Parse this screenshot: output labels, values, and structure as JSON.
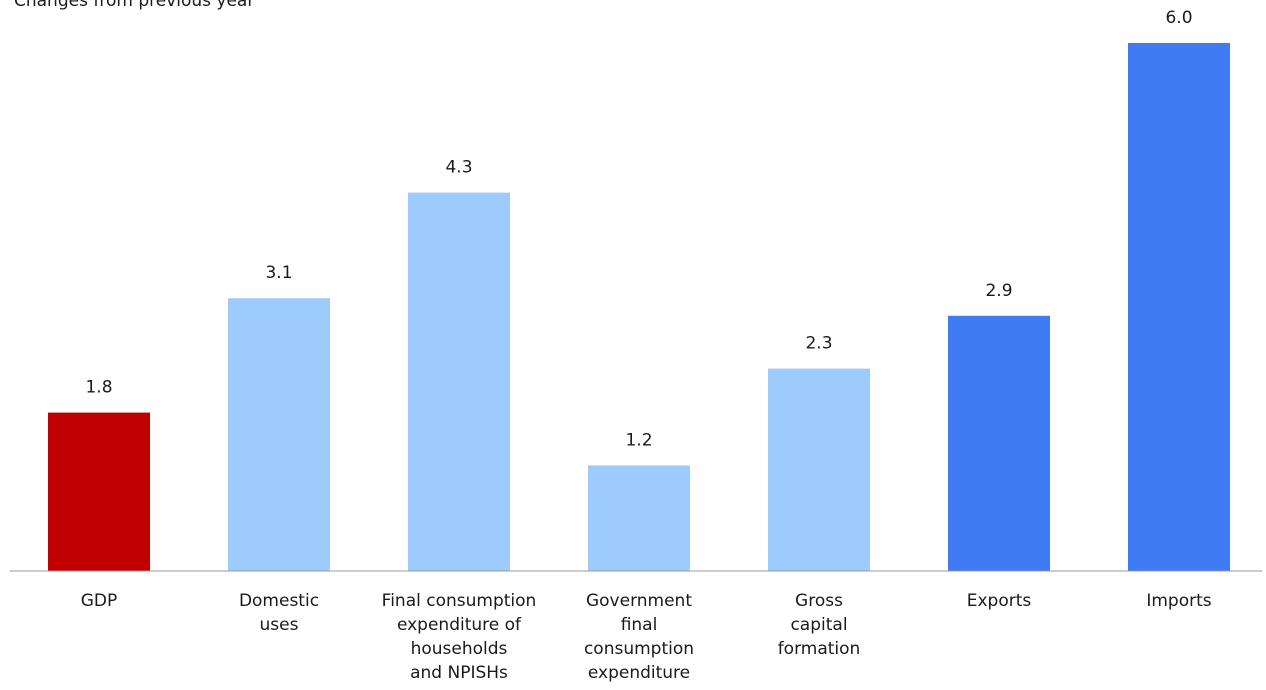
{
  "chart_data": {
    "type": "bar",
    "title": "Changes from previous year",
    "categories": [
      [
        "GDP"
      ],
      [
        "Domestic",
        "uses"
      ],
      [
        "Final consumption",
        "expenditure of",
        "households",
        "and NPISHs"
      ],
      [
        "Government",
        "final",
        "consumption",
        "expenditure"
      ],
      [
        "Gross",
        "capital",
        "formation"
      ],
      [
        "Exports"
      ],
      [
        "Imports"
      ]
    ],
    "values": [
      1.8,
      3.1,
      4.3,
      1.2,
      2.3,
      2.9,
      6.0
    ],
    "value_labels": [
      "1.8",
      "3.1",
      "4.3",
      "1.2",
      "2.3",
      "2.9",
      "6.0"
    ],
    "bar_colors": [
      "#c00000",
      "#9dcbfd",
      "#9dcbfd",
      "#9dcbfd",
      "#9dcbfd",
      "#3f7bf3",
      "#3f7bf3"
    ],
    "ylim": [
      0,
      6.0
    ],
    "grid": false,
    "xlabel": "",
    "ylabel": ""
  },
  "colors": {
    "axis": "#999999",
    "text": "#1a1a1a"
  }
}
